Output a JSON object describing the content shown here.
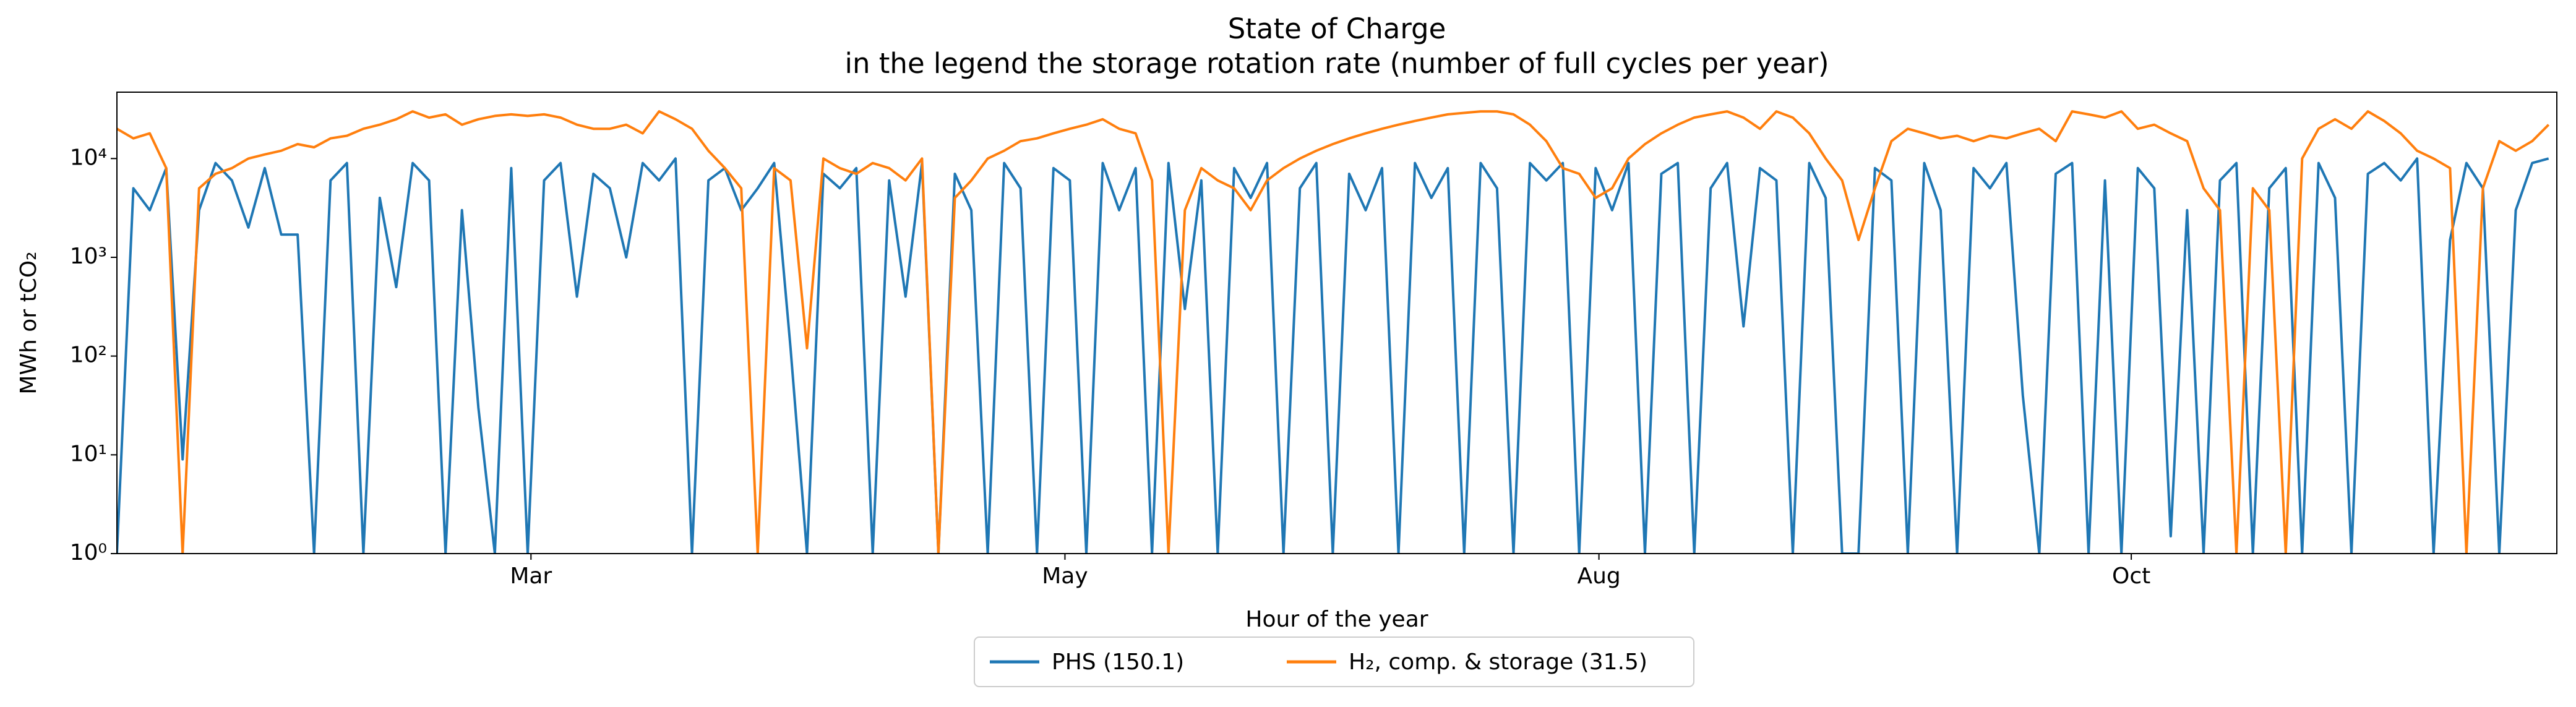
{
  "chart_data": {
    "type": "line",
    "title": "State of Charge",
    "subtitle": "in the legend the storage rotation rate (number of full cycles per year)",
    "x_label": "Hour of the year",
    "y_label": "MWh or tCO₂",
    "ylog": true,
    "legend": "lower center outside",
    "xlim": [
      0,
      1485
    ],
    "xticks": [
      {
        "value": 252,
        "label": "Mar"
      },
      {
        "value": 577,
        "label": "May"
      },
      {
        "value": 902,
        "label": "Aug"
      },
      {
        "value": 1226,
        "label": "Oct"
      }
    ],
    "ylim": [
      1,
      47000
    ],
    "yticks": [
      {
        "value": 1,
        "label": "10⁰"
      },
      {
        "value": 10,
        "label": "10¹"
      },
      {
        "value": 100,
        "label": "10²"
      },
      {
        "value": 1000,
        "label": "10³"
      },
      {
        "value": 10000,
        "label": "10⁴"
      }
    ],
    "x": [
      0,
      10,
      20,
      30,
      40,
      50,
      60,
      70,
      80,
      90,
      100,
      110,
      120,
      130,
      140,
      150,
      160,
      170,
      180,
      190,
      200,
      210,
      220,
      230,
      240,
      250,
      260,
      270,
      280,
      290,
      300,
      310,
      320,
      330,
      340,
      350,
      360,
      370,
      380,
      390,
      400,
      410,
      420,
      430,
      440,
      450,
      460,
      470,
      480,
      490,
      500,
      510,
      520,
      530,
      540,
      550,
      560,
      570,
      580,
      590,
      600,
      610,
      620,
      630,
      640,
      650,
      660,
      670,
      680,
      690,
      700,
      710,
      720,
      730,
      740,
      750,
      760,
      770,
      780,
      790,
      800,
      810,
      820,
      830,
      840,
      850,
      860,
      870,
      880,
      890,
      900,
      910,
      920,
      930,
      940,
      950,
      960,
      970,
      980,
      990,
      1000,
      1010,
      1020,
      1030,
      1040,
      1050,
      1060,
      1070,
      1080,
      1090,
      1100,
      1110,
      1120,
      1130,
      1140,
      1150,
      1160,
      1170,
      1180,
      1190,
      1200,
      1210,
      1220,
      1230,
      1240,
      1250,
      1260,
      1270,
      1280,
      1290,
      1300,
      1310,
      1320,
      1330,
      1340,
      1350,
      1360,
      1370,
      1380,
      1390,
      1400,
      1410,
      1420,
      1430,
      1440,
      1450,
      1460,
      1470,
      1480
    ],
    "series": [
      {
        "name": "PHS (150.1)",
        "color": "#1f77b4",
        "values": [
          1,
          5000,
          3000,
          8000,
          9,
          3000,
          9000,
          6000,
          2000,
          8000,
          1700,
          1700,
          1,
          6000,
          9000,
          1,
          4000,
          500,
          9000,
          6000,
          1,
          3000,
          30,
          1,
          8000,
          1,
          6000,
          9000,
          400,
          7000,
          5000,
          1000,
          9000,
          6000,
          10000,
          1,
          6000,
          8000,
          3000,
          5000,
          9000,
          120,
          1,
          7000,
          5000,
          8000,
          1,
          6000,
          400,
          9000,
          1,
          7000,
          3000,
          1,
          9000,
          5000,
          1,
          8000,
          6000,
          1,
          9000,
          3000,
          8000,
          1,
          9000,
          300,
          6000,
          1,
          8000,
          4000,
          9000,
          1,
          5000,
          9000,
          1,
          7000,
          3000,
          8000,
          1,
          9000,
          4000,
          8000,
          1,
          9000,
          5000,
          1,
          9000,
          6000,
          9000,
          1,
          8000,
          3000,
          9000,
          1,
          7000,
          9000,
          1,
          5000,
          9000,
          200,
          8000,
          6000,
          1,
          9000,
          4000,
          1,
          1,
          8000,
          6000,
          1,
          9000,
          3000,
          1,
          8000,
          5000,
          9000,
          40,
          1,
          7000,
          9000,
          1,
          6000,
          1,
          8000,
          5000,
          1.5,
          3000,
          1,
          6000,
          9000,
          1,
          5000,
          8000,
          1,
          9000,
          4000,
          1,
          7000,
          9000,
          6000,
          10000,
          1,
          1500,
          9000,
          5000,
          1,
          3000,
          9000,
          10000
        ]
      },
      {
        "name": "H₂, comp. & storage (31.5)",
        "color": "#ff7f0e",
        "values": [
          20000,
          16000,
          18000,
          8000,
          1,
          5000,
          7000,
          8000,
          10000,
          11000,
          12000,
          14000,
          13000,
          16000,
          17000,
          20000,
          22000,
          25000,
          30000,
          26000,
          28000,
          22000,
          25000,
          27000,
          28000,
          27000,
          28000,
          26000,
          22000,
          20000,
          20000,
          22000,
          18000,
          30000,
          25000,
          20000,
          12000,
          8000,
          5000,
          1,
          8000,
          6000,
          120,
          10000,
          8000,
          7000,
          9000,
          8000,
          6000,
          10000,
          1,
          4000,
          6000,
          10000,
          12000,
          15000,
          16000,
          18000,
          20000,
          22000,
          25000,
          20000,
          18000,
          6000,
          1,
          3000,
          8000,
          6000,
          5000,
          3000,
          6000,
          8000,
          10000,
          12000,
          14000,
          16000,
          18000,
          20000,
          22000,
          24000,
          26000,
          28000,
          29000,
          30000,
          30000,
          28000,
          22000,
          15000,
          8000,
          7000,
          4000,
          5000,
          10000,
          14000,
          18000,
          22000,
          26000,
          28000,
          30000,
          26000,
          20000,
          30000,
          26000,
          18000,
          10000,
          6000,
          1500,
          5000,
          15000,
          20000,
          18000,
          16000,
          17000,
          15000,
          17000,
          16000,
          18000,
          20000,
          15000,
          30000,
          28000,
          26000,
          30000,
          20000,
          22000,
          18000,
          15000,
          5000,
          3000,
          1,
          5000,
          3000,
          1,
          10000,
          20000,
          25000,
          20000,
          30000,
          24000,
          18000,
          12000,
          10000,
          8000,
          1,
          5000,
          15000,
          12000,
          15000,
          22000
        ]
      }
    ]
  }
}
